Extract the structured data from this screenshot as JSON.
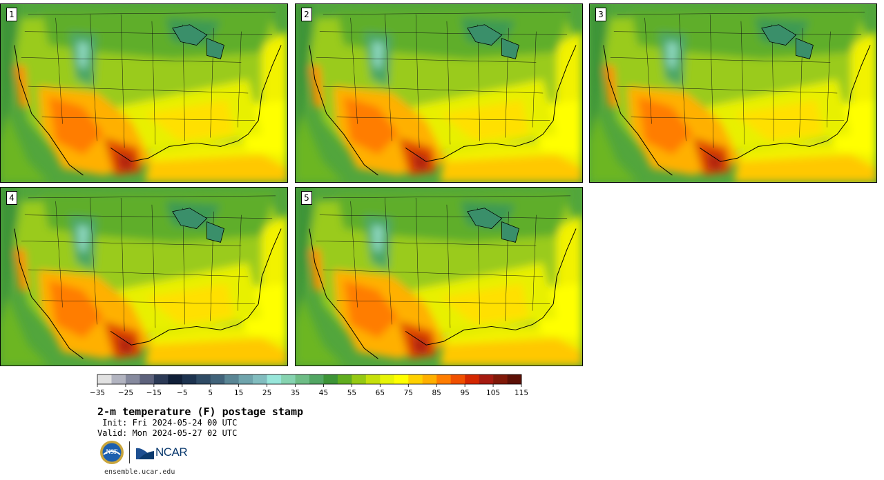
{
  "stamps": [
    {
      "label": "1"
    },
    {
      "label": "2"
    },
    {
      "label": "3"
    },
    {
      "label": "4"
    },
    {
      "label": "5"
    }
  ],
  "colorbar": {
    "min": -35,
    "max": 120,
    "step": 5,
    "tick_labels": [
      "−35",
      "−25",
      "−15",
      "−5",
      "5",
      "15",
      "25",
      "35",
      "45",
      "55",
      "65",
      "75",
      "85",
      "95",
      "105",
      "115"
    ],
    "colors": [
      "#e1e1e1",
      "#b2b4c0",
      "#868a9e",
      "#5d627c",
      "#2c3a56",
      "#101f38",
      "#1d334f",
      "#2f4b65",
      "#41637a",
      "#5a8695",
      "#6fa4ac",
      "#82bdbf",
      "#98e6da",
      "#86d3b0",
      "#6ebd86",
      "#52a663",
      "#3d9437",
      "#60ad1f",
      "#95c913",
      "#c6e00b",
      "#e7f407",
      "#ffff00",
      "#ffd100",
      "#ffb000",
      "#ff7d00",
      "#f05000",
      "#d42700",
      "#a51a10",
      "#801808",
      "#5c1006"
    ]
  },
  "title": "2-m temperature (F) postage stamp",
  "init": " Init: Fri 2024-05-24 00 UTC",
  "valid": "Valid: Mon 2024-05-27 02 UTC",
  "logos": {
    "nsf": "NSF",
    "ncar": "NCAR"
  },
  "url": "ensemble.ucar.edu"
}
